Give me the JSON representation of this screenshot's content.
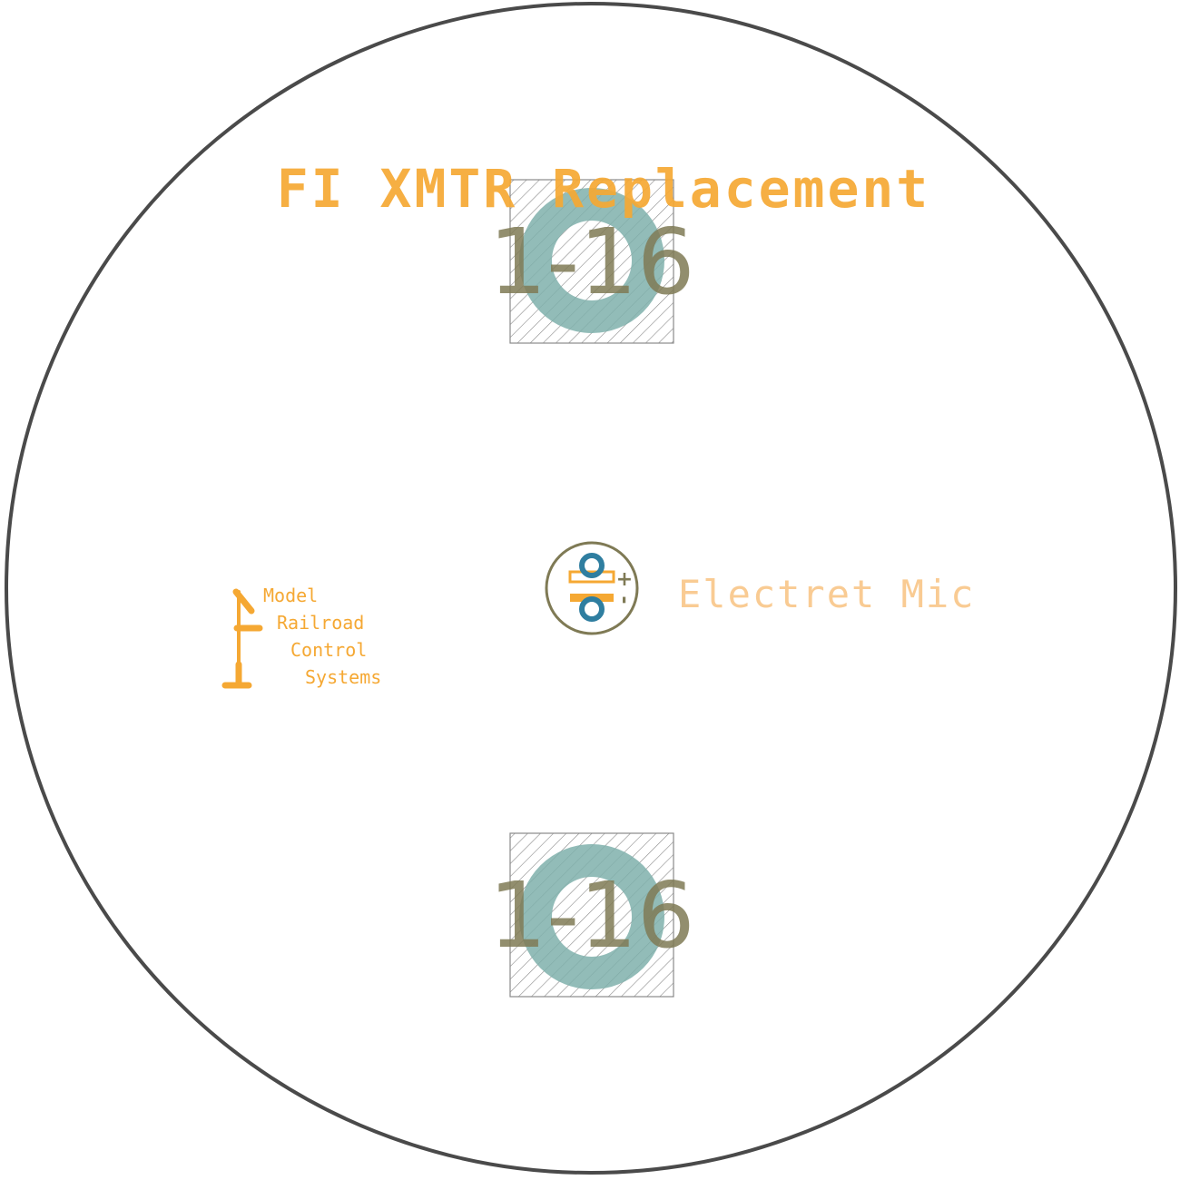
{
  "board": {
    "title": "FI XMTR Replacement",
    "outline_color": "#4a4a4a",
    "silk_color": "#f5a833",
    "silk_light_color": "#f9cb93",
    "keepout_color": "#8a8a8a",
    "pad_color": "#7fb0ac",
    "via_color": "#2f7ea0",
    "label_color": "#7f7a55"
  },
  "mount_holes": [
    {
      "label": "1-16"
    },
    {
      "label": "1-16"
    }
  ],
  "mic": {
    "label": "Electret Mic",
    "plus": "+",
    "minus": "-"
  },
  "logo": {
    "line1": "Model",
    "line2": "Railroad",
    "line3": "Control",
    "line4": "Systems"
  }
}
